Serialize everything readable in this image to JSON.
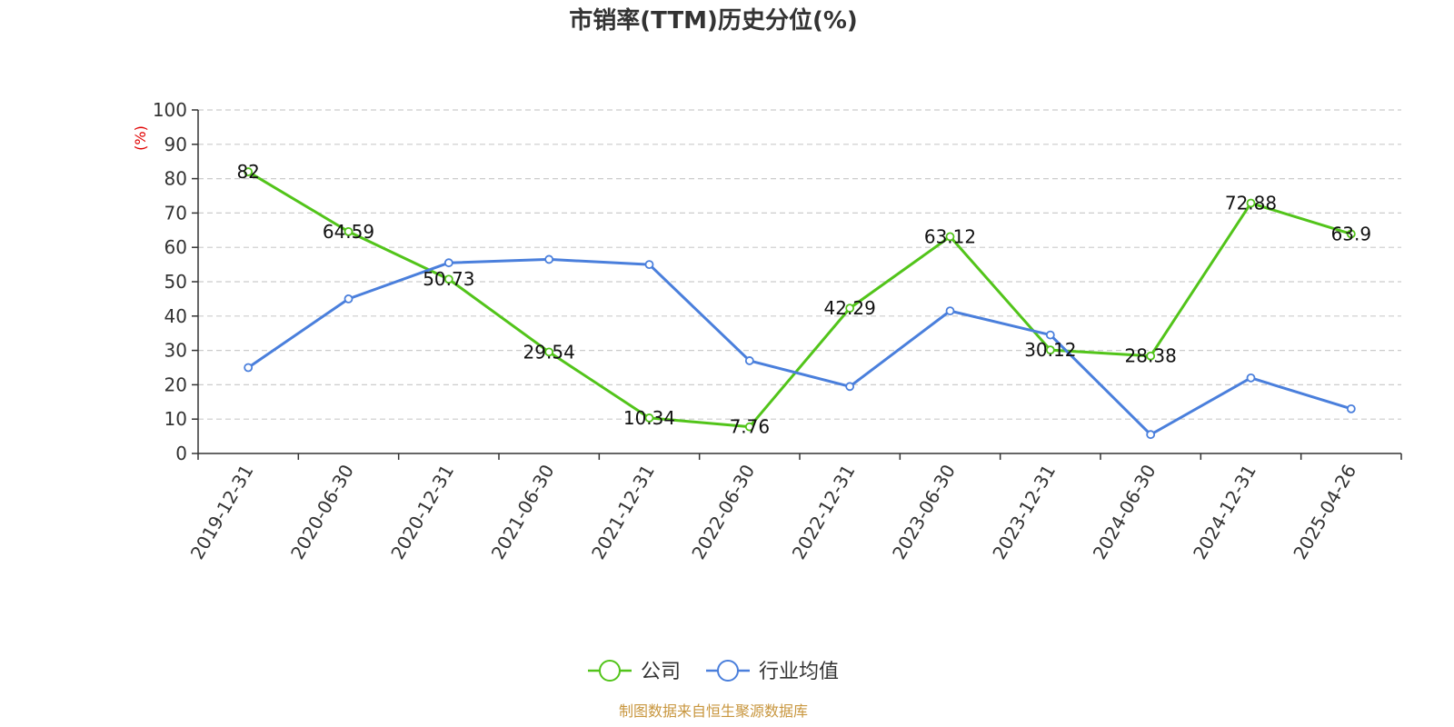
{
  "chart_data": {
    "type": "line",
    "title": "市销率(TTM)历史分位(%)",
    "ylabel": "(%)",
    "ylim": [
      0,
      100
    ],
    "yticks": [
      0,
      10,
      20,
      30,
      40,
      50,
      60,
      70,
      80,
      90,
      100
    ],
    "grid": true,
    "legend_placement": "bottom-center",
    "categories": [
      "2019-12-31",
      "2020-06-30",
      "2020-12-31",
      "2021-06-30",
      "2021-12-31",
      "2022-06-30",
      "2022-12-31",
      "2023-06-30",
      "2023-12-31",
      "2024-06-30",
      "2024-12-31",
      "2025-04-26"
    ],
    "series": [
      {
        "name": "公司",
        "color": "#52c41a",
        "show_labels": true,
        "values": [
          82,
          64.59,
          50.73,
          29.54,
          10.34,
          7.76,
          42.29,
          63.12,
          30.12,
          28.38,
          72.88,
          63.9
        ],
        "labels": [
          "82",
          "64.59",
          "50.73",
          "29.54",
          "10.34",
          "7.76",
          "42.29",
          "63.12",
          "30.12",
          "28.38",
          "72.88",
          "63.9"
        ]
      },
      {
        "name": "行业均值",
        "color": "#4a7fdc",
        "show_labels": false,
        "values": [
          25,
          45,
          55.5,
          56.5,
          55,
          27,
          19.5,
          41.5,
          34.5,
          5.5,
          22,
          13
        ]
      }
    ]
  },
  "source": {
    "text": "制图数据来自恒生聚源数据库",
    "color": "#c8963e"
  },
  "ylabel_color": "#e00000"
}
